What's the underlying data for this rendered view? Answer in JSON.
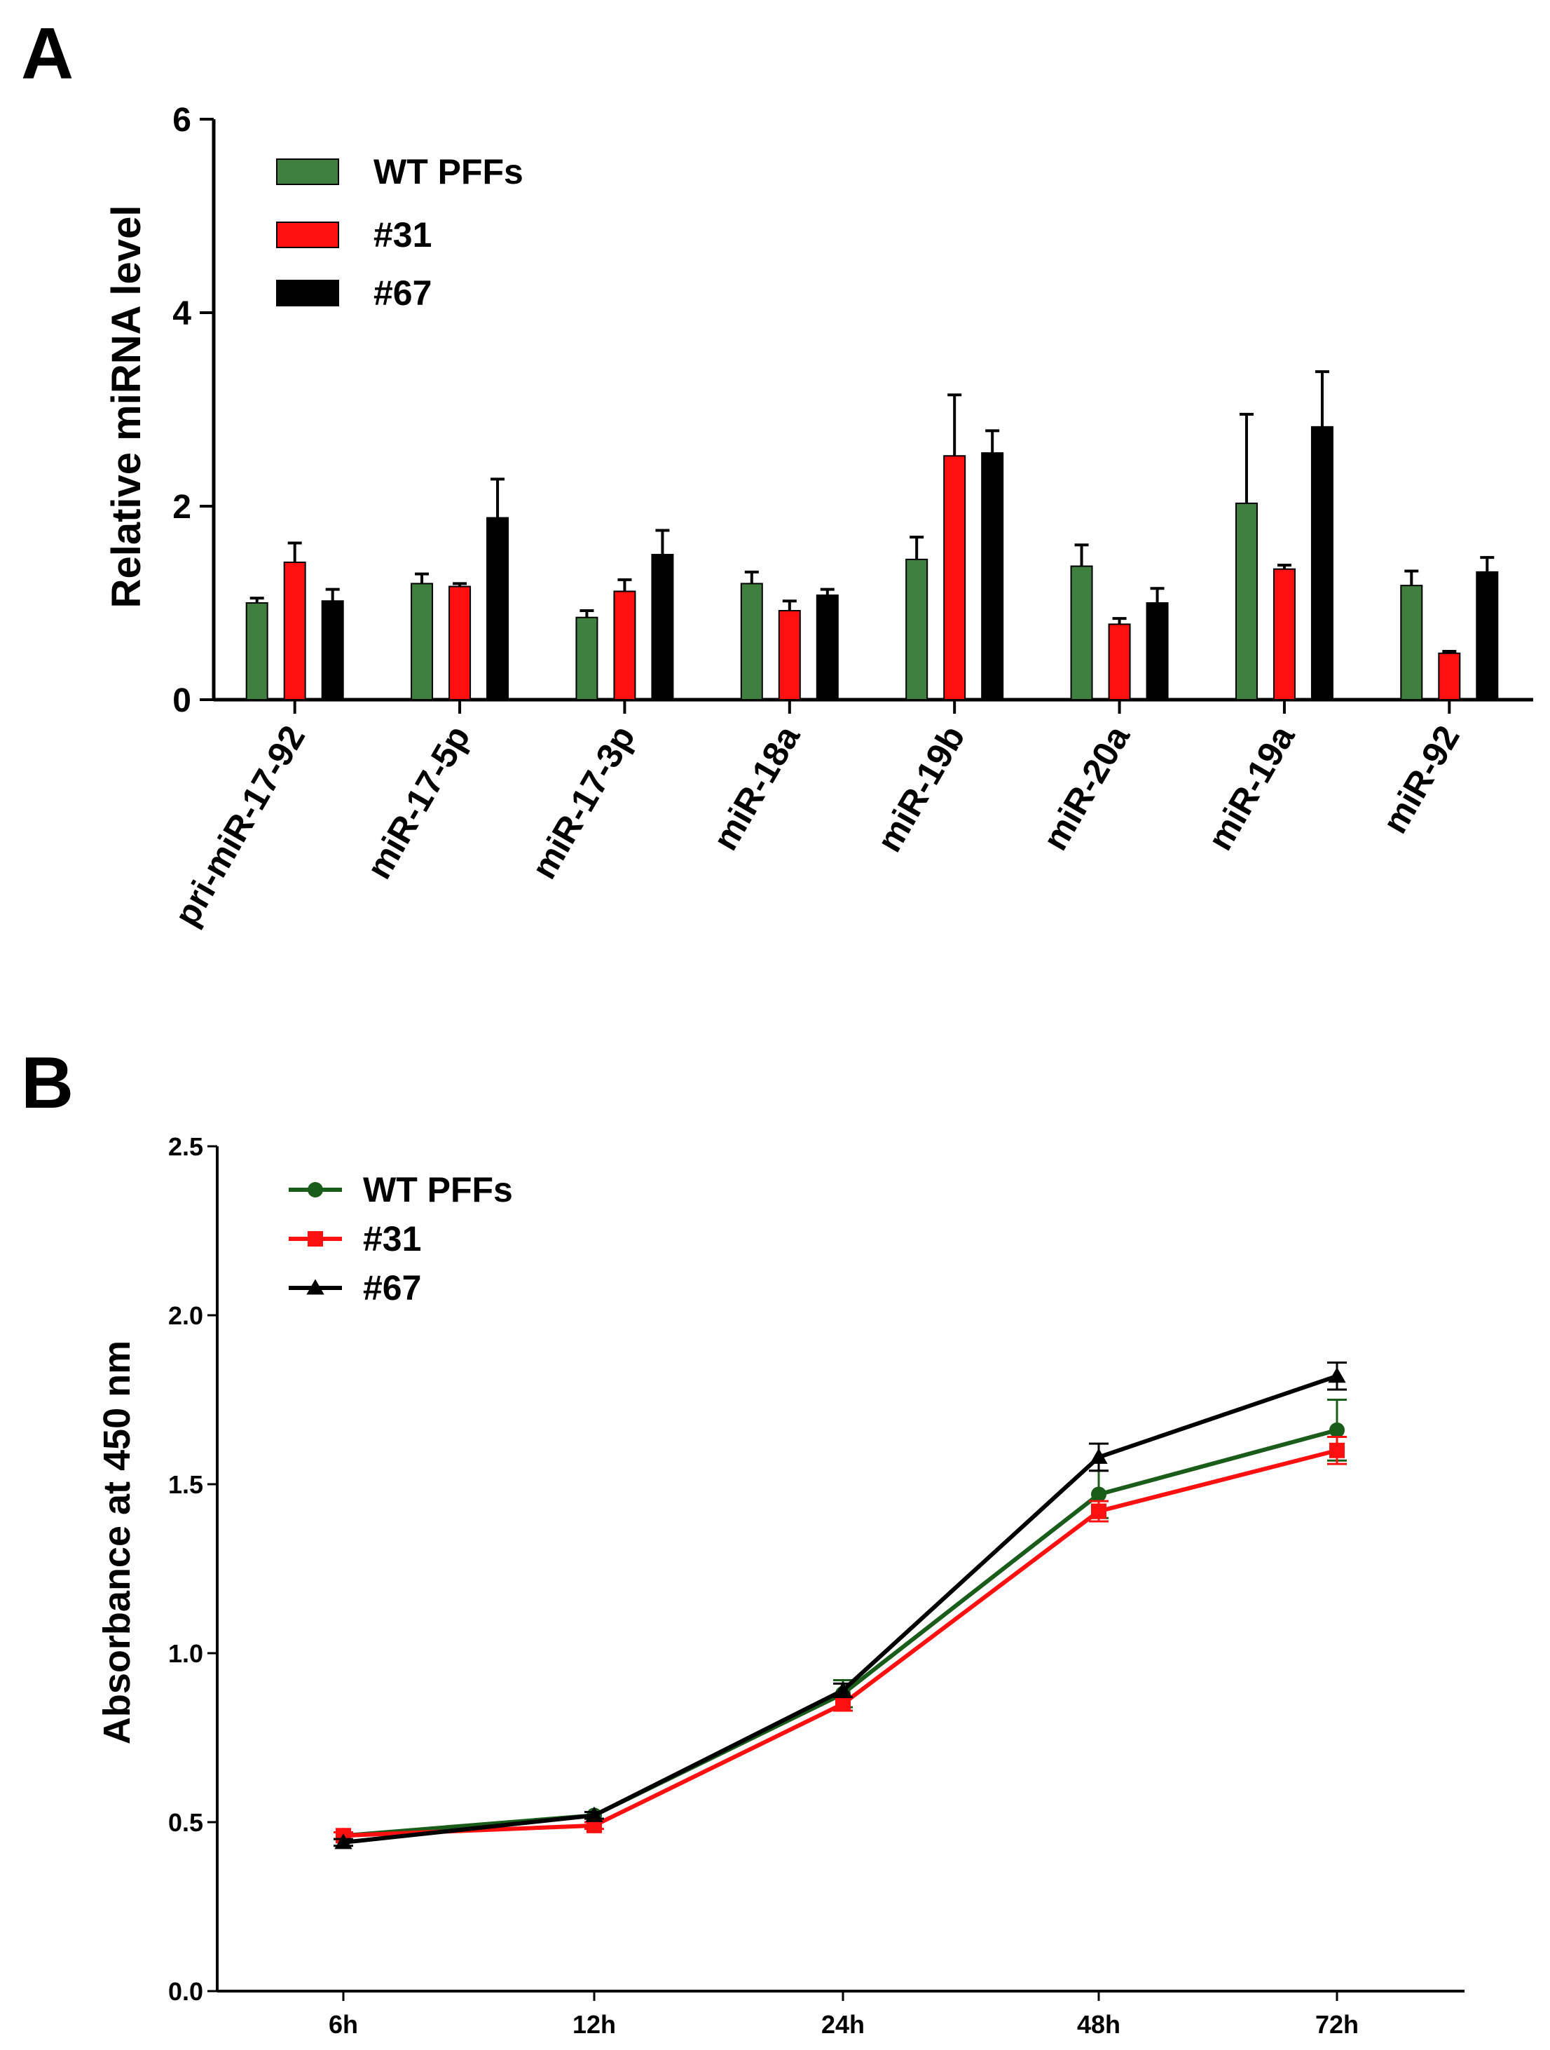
{
  "chart_data": [
    {
      "panel": "A",
      "type": "bar",
      "ylabel": "Relative miRNA level",
      "xlabel": "",
      "ylim": [
        0,
        6
      ],
      "yticks": [
        "0",
        "2",
        "4",
        "6"
      ],
      "yticks_values": [
        0,
        2,
        4,
        6
      ],
      "categories": [
        "pri-miR-17-92",
        "miR-17-5p",
        "miR-17-3p",
        "miR-18a",
        "miR-19b",
        "miR-20a",
        "miR-19a",
        "miR-92"
      ],
      "series": [
        {
          "name": "WT PFFs",
          "color": "#3f7f3f",
          "values": [
            1.0,
            1.2,
            0.85,
            1.2,
            1.45,
            1.38,
            2.03,
            1.18
          ],
          "errors": [
            0.05,
            0.1,
            0.07,
            0.12,
            0.23,
            0.22,
            0.92,
            0.15
          ]
        },
        {
          "name": "#31",
          "color": "#ff1010",
          "values": [
            1.42,
            1.17,
            1.12,
            0.92,
            2.52,
            0.78,
            1.35,
            0.48
          ],
          "errors": [
            0.2,
            0.03,
            0.12,
            0.1,
            0.63,
            0.06,
            0.04,
            0.02
          ]
        },
        {
          "name": "#67",
          "color": "#000000",
          "values": [
            1.02,
            1.88,
            1.5,
            1.08,
            2.55,
            1.0,
            2.82,
            1.32
          ],
          "errors": [
            0.12,
            0.4,
            0.25,
            0.06,
            0.23,
            0.15,
            0.57,
            0.15
          ]
        }
      ],
      "legend_position": "top-left"
    },
    {
      "panel": "B",
      "type": "line",
      "ylabel": "Absorbance at 450 nm",
      "xlabel": "",
      "ylim": [
        0,
        2.5
      ],
      "yticks": [
        "0.0",
        "0.5",
        "1.0",
        "1.5",
        "2.0",
        "2.5"
      ],
      "yticks_values": [
        0,
        0.5,
        1.0,
        1.5,
        2.0,
        2.5
      ],
      "categories": [
        "6h",
        "12h",
        "24h",
        "48h",
        "72h"
      ],
      "series": [
        {
          "name": "WT PFFs",
          "color": "#1a5c1a",
          "marker": "circle",
          "values": [
            0.46,
            0.52,
            0.88,
            1.47,
            1.66
          ],
          "errors": [
            0.01,
            0.01,
            0.04,
            0.07,
            0.09
          ]
        },
        {
          "name": "#31",
          "color": "#ff1010",
          "marker": "square",
          "values": [
            0.46,
            0.49,
            0.85,
            1.42,
            1.6
          ],
          "errors": [
            0.01,
            0.01,
            0.02,
            0.03,
            0.04
          ]
        },
        {
          "name": "#67",
          "color": "#000000",
          "marker": "triangle",
          "values": [
            0.44,
            0.52,
            0.89,
            1.58,
            1.82
          ],
          "errors": [
            0.01,
            0.01,
            0.02,
            0.04,
            0.04
          ]
        }
      ],
      "legend_position": "top-left"
    }
  ]
}
